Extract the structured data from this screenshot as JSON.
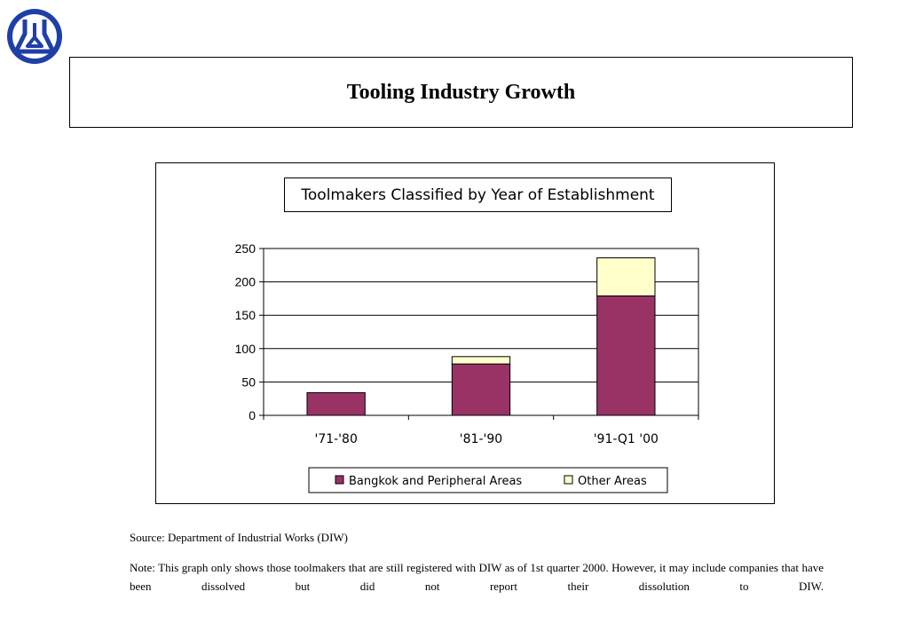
{
  "header": {
    "title": "Tooling Industry Growth"
  },
  "chart_data": {
    "type": "bar",
    "stacked": true,
    "title": "Toolmakers Classified by Year of Establishment",
    "xlabel": "",
    "ylabel": "",
    "categories": [
      "'71-'80",
      "'81-'90",
      "'91-Q1 '00"
    ],
    "series": [
      {
        "name": "Bangkok and Peripheral Areas",
        "values": [
          34,
          77,
          179
        ],
        "color": "#993366"
      },
      {
        "name": "Other Areas",
        "values": [
          0,
          11,
          57
        ],
        "color": "#FFFFCC"
      }
    ],
    "ylim": [
      0,
      250
    ],
    "yticks": [
      0,
      50,
      100,
      150,
      200,
      250
    ],
    "grid": true,
    "legend": "bottom"
  },
  "footer": {
    "source": "Source: Department of Industrial Works (DIW)",
    "note": "Note: This graph only shows those toolmakers  that are still registered with DIW as of 1st quarter 2000. However, it may include companies that have been dissolved but did not report their dissolution to DIW."
  }
}
